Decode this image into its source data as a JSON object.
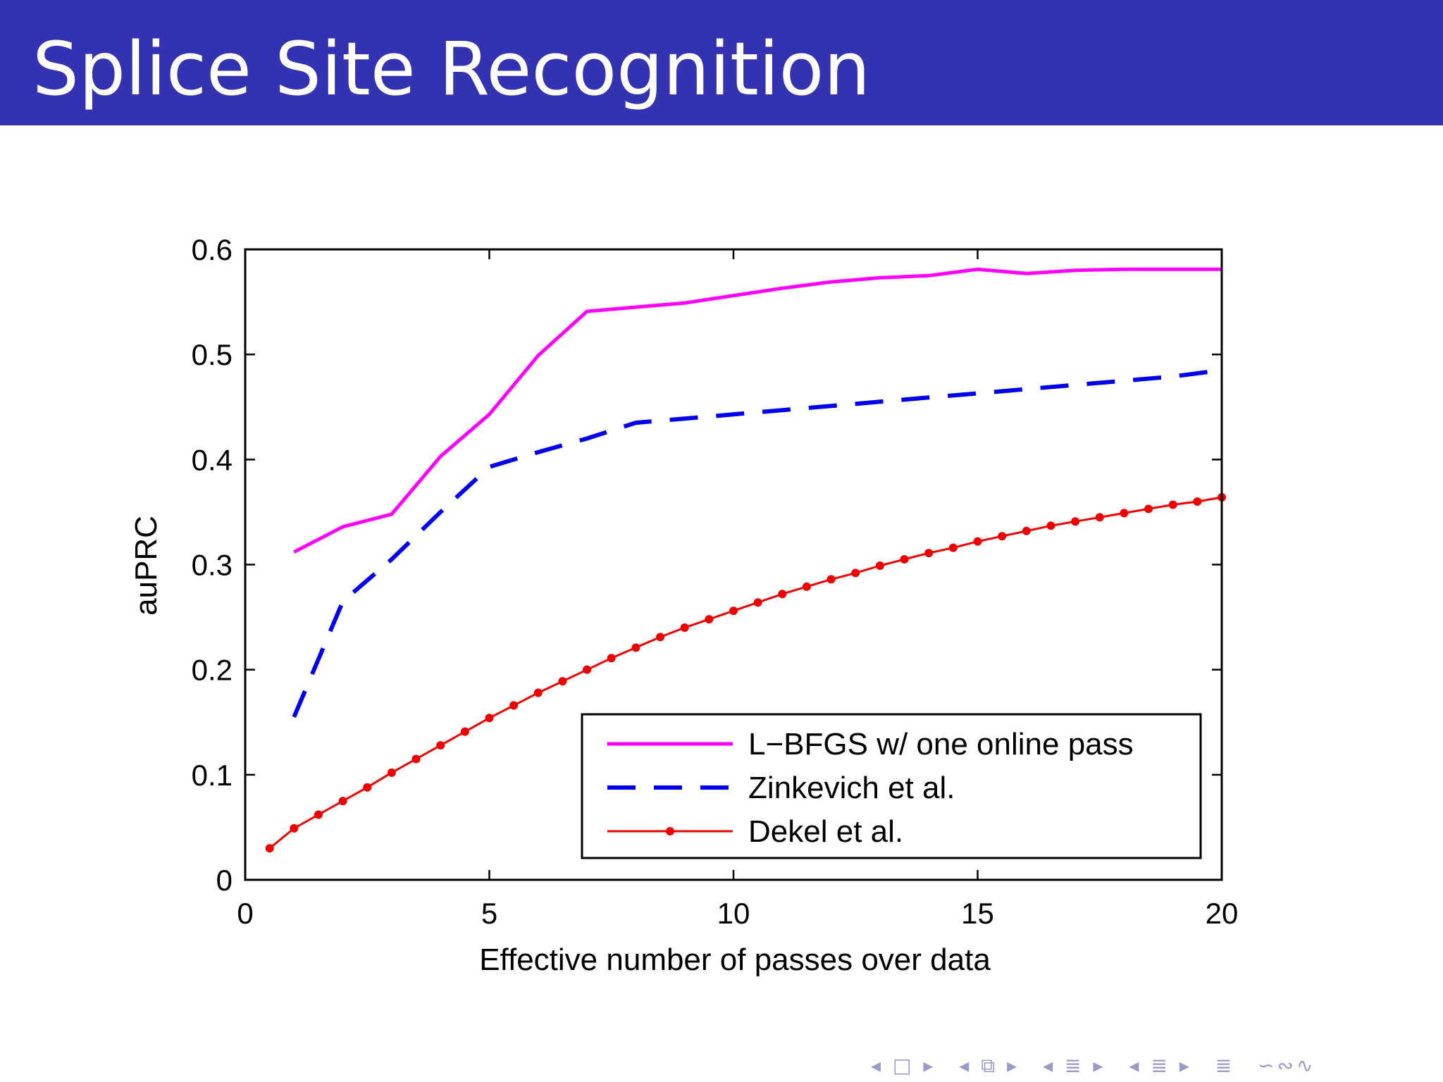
{
  "slide": {
    "title": "Splice Site Recognition"
  },
  "nav": {
    "items": [
      "◂ □ ▸",
      "◂ ⧉ ▸",
      "◂ ≣ ▸",
      "◂ ≣ ▸",
      "≣",
      "∽∾∿"
    ]
  },
  "chart_data": {
    "type": "line",
    "title": "",
    "xlabel": "Effective number of passes over data",
    "ylabel": "auPRC",
    "xlim": [
      0,
      20
    ],
    "ylim": [
      0,
      0.6
    ],
    "xticks": [
      "0",
      "5",
      "10",
      "15",
      "20"
    ],
    "yticks": [
      "0",
      "0.1",
      "0.2",
      "0.3",
      "0.4",
      "0.5",
      "0.6"
    ],
    "legend_position": "bottom-right",
    "grid": false,
    "series": [
      {
        "name": "L−BFGS w/ one online pass",
        "color": "#ff00ff",
        "style": "solid",
        "x": [
          1,
          2,
          3,
          4,
          5,
          6,
          7,
          8,
          9,
          10,
          11,
          12,
          13,
          14,
          15,
          16,
          17,
          18,
          19,
          20
        ],
        "y": [
          0.312,
          0.336,
          0.348,
          0.403,
          0.443,
          0.499,
          0.541,
          0.545,
          0.549,
          0.556,
          0.563,
          0.569,
          0.573,
          0.575,
          0.581,
          0.577,
          0.58,
          0.581,
          0.581,
          0.581
        ]
      },
      {
        "name": "Zinkevich et al.",
        "color": "#0000ee",
        "style": "dashed",
        "x": [
          1,
          2,
          3,
          4,
          5,
          6,
          7,
          8,
          9,
          10,
          11,
          12,
          13,
          14,
          15,
          16,
          17,
          18,
          19,
          20
        ],
        "y": [
          0.155,
          0.265,
          0.305,
          0.35,
          0.393,
          0.407,
          0.42,
          0.435,
          0.439,
          0.443,
          0.447,
          0.451,
          0.455,
          0.459,
          0.463,
          0.467,
          0.471,
          0.475,
          0.479,
          0.485
        ]
      },
      {
        "name": "Dekel et al.",
        "color": "#ee0000",
        "style": "solid-dots",
        "x": [
          0.5,
          1,
          1.5,
          2,
          2.5,
          3,
          3.5,
          4,
          4.5,
          5,
          5.5,
          6,
          6.5,
          7,
          7.5,
          8,
          8.5,
          9,
          9.5,
          10,
          10.5,
          11,
          11.5,
          12,
          12.5,
          13,
          13.5,
          14,
          14.5,
          15,
          15.5,
          16,
          16.5,
          17,
          17.5,
          18,
          18.5,
          19,
          19.5,
          20
        ],
        "y": [
          0.03,
          0.049,
          0.062,
          0.075,
          0.088,
          0.102,
          0.115,
          0.128,
          0.141,
          0.154,
          0.166,
          0.178,
          0.189,
          0.2,
          0.211,
          0.221,
          0.231,
          0.24,
          0.248,
          0.256,
          0.264,
          0.272,
          0.279,
          0.286,
          0.292,
          0.299,
          0.305,
          0.311,
          0.316,
          0.322,
          0.327,
          0.332,
          0.337,
          0.341,
          0.345,
          0.349,
          0.353,
          0.357,
          0.36,
          0.364
        ]
      }
    ]
  }
}
